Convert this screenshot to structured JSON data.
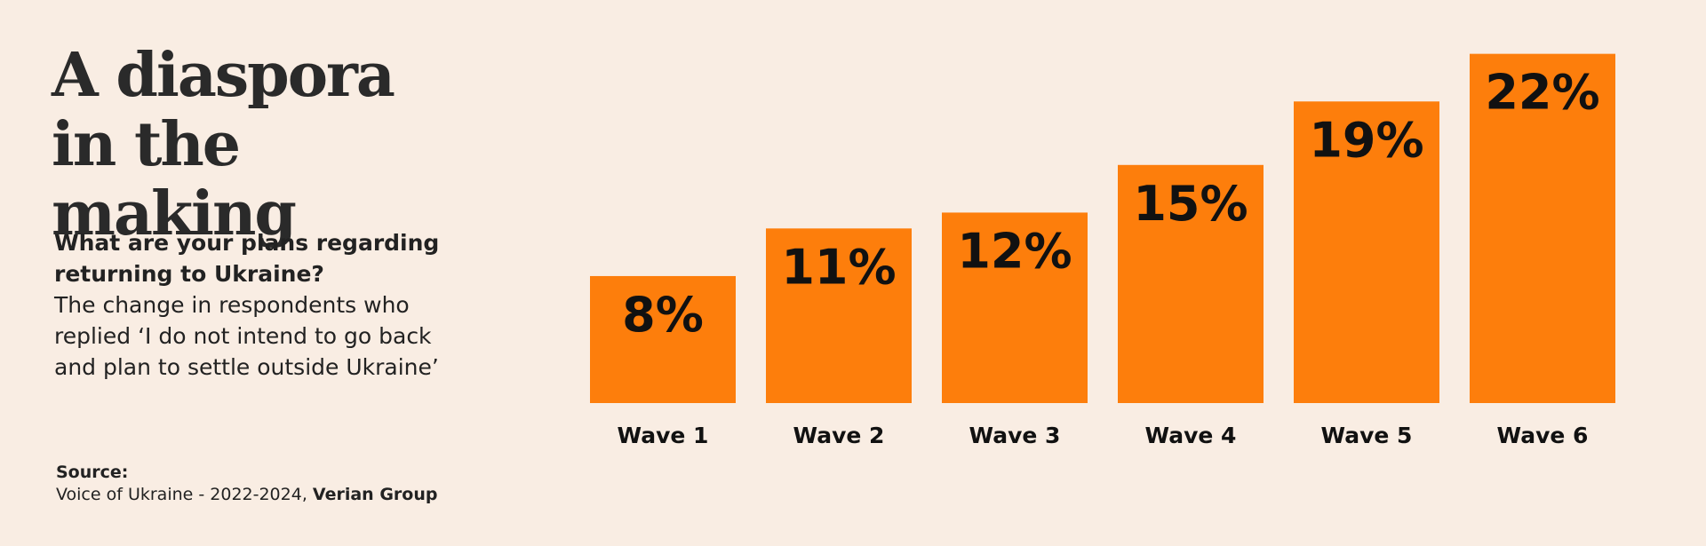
{
  "chart_data": {
    "type": "bar",
    "title": "A diaspora in the making",
    "subtitle": "What are your plans regarding returning to Ukraine?",
    "description": "The change in respondents who replied ‘I do not intend to go back and plan to settle outside Ukraine’",
    "source_label": "Source:",
    "source_text": "Voice of Ukraine - 2022-2024,",
    "source_org": "Verian Group",
    "categories": [
      "Wave 1",
      "Wave 2",
      "Wave 3",
      "Wave 4",
      "Wave 5",
      "Wave 6"
    ],
    "values": [
      8,
      11,
      12,
      15,
      19,
      22
    ],
    "value_labels": [
      "8%",
      "11%",
      "12%",
      "15%",
      "19%",
      "22%"
    ],
    "color": "#fd7e0c"
  }
}
